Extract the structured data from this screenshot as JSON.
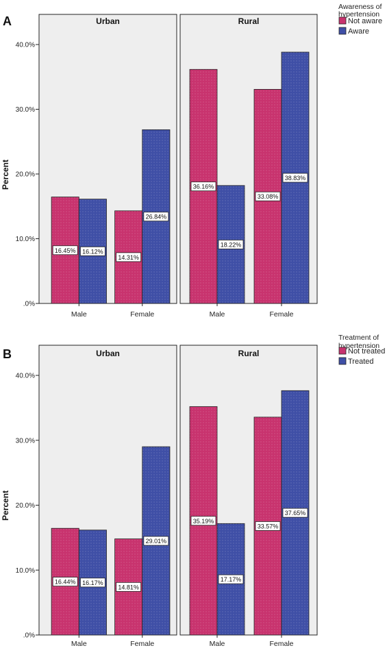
{
  "colors": {
    "not": "#c8336e",
    "yes": "#3f4fa6",
    "panel_bg": "#eeeeee",
    "frame": "#222222"
  },
  "chart_data": [
    {
      "type": "bar",
      "panel": "A",
      "facets": [
        "Urban",
        "Rural"
      ],
      "categories": [
        "Male",
        "Female"
      ],
      "legend_title": [
        "Awareness of",
        "hypertension"
      ],
      "ylabel": "Percent",
      "yticks": [
        ".0%",
        "10.0%",
        "20.0%",
        "30.0%",
        "40.0%"
      ],
      "ylim": [
        0,
        40
      ],
      "series": [
        {
          "name": "Not aware",
          "labels": [
            [
              "16.45%",
              "14.31%"
            ],
            [
              "36.16%",
              "33.08%"
            ]
          ],
          "values": [
            [
              16.45,
              14.31
            ],
            [
              36.16,
              33.08
            ]
          ]
        },
        {
          "name": "Aware",
          "labels": [
            [
              "16.12%",
              "26.84%"
            ],
            [
              "18.22%",
              "38.83%"
            ]
          ],
          "values": [
            [
              16.12,
              26.84
            ],
            [
              18.22,
              38.83
            ]
          ]
        }
      ]
    },
    {
      "type": "bar",
      "panel": "B",
      "facets": [
        "Urban",
        "Rural"
      ],
      "categories": [
        "Male",
        "Female"
      ],
      "legend_title": [
        "Treatment of",
        "hypertension"
      ],
      "ylabel": "Percent",
      "yticks": [
        ".0%",
        "10.0%",
        "20.0%",
        "30.0%",
        "40.0%"
      ],
      "ylim": [
        0,
        40
      ],
      "series": [
        {
          "name": "Not treated",
          "labels": [
            [
              "16.44%",
              "14.81%"
            ],
            [
              "35.19%",
              "33.57%"
            ]
          ],
          "values": [
            [
              16.44,
              14.81
            ],
            [
              35.19,
              33.57
            ]
          ]
        },
        {
          "name": "Treated",
          "labels": [
            [
              "16.17%",
              "29.01%"
            ],
            [
              "17.17%",
              "37.65%"
            ]
          ],
          "values": [
            [
              16.17,
              29.01
            ],
            [
              17.17,
              37.65
            ]
          ]
        }
      ]
    }
  ]
}
